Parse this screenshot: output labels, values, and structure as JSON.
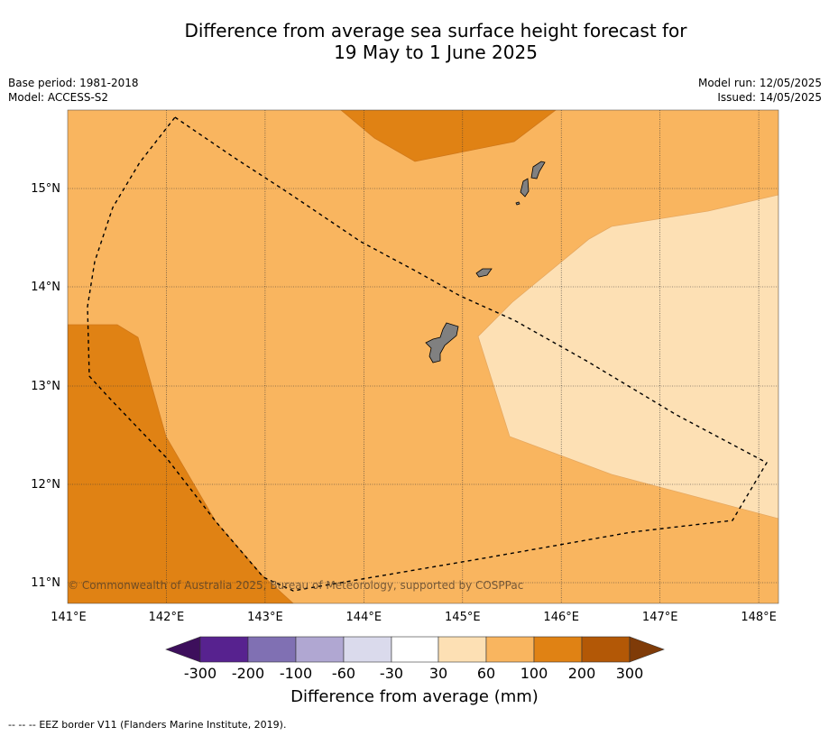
{
  "title": {
    "line1": "Difference from average sea surface height forecast for",
    "line2": "19 May to 1 June 2025"
  },
  "meta": {
    "base_period": "Base period: 1981-2018",
    "model": "Model: ACCESS-S2",
    "model_run": "Model run: 12/05/2025",
    "issued": "Issued: 14/05/2025"
  },
  "map": {
    "lon_range": [
      141,
      148.2
    ],
    "lat_range": [
      10.8,
      15.8
    ],
    "x_ticks": [
      "141°E",
      "142°E",
      "143°E",
      "144°E",
      "145°E",
      "146°E",
      "147°E",
      "148°E"
    ],
    "y_ticks": [
      "15°N",
      "14°N",
      "13°N",
      "12°N",
      "11°N"
    ],
    "copyright": "© Commonwealth of Australia 2025, Bureau of Meteorology, supported by COSPPac",
    "land_color": "#808080",
    "ocean_dominant_category": "60 to 100"
  },
  "colorbar": {
    "title": "Difference from average (mm)",
    "ticks": [
      "-300",
      "-200",
      "-100",
      "-60",
      "-30",
      "30",
      "60",
      "100",
      "200",
      "300"
    ],
    "colors": [
      "#3d0f5c",
      "#57228f",
      "#8070b3",
      "#b0a7d2",
      "#dadaec",
      "#ffffff",
      "#fde0b4",
      "#f9b55f",
      "#e08214",
      "#b35806",
      "#7f3b08"
    ]
  },
  "footer": {
    "line_symbol": "-- -- --",
    "text": "EEZ border V11 (Flanders Marine Institute, 2019)."
  }
}
